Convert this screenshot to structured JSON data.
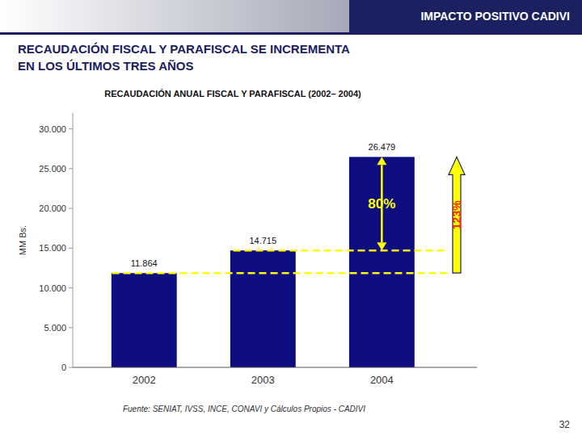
{
  "chart_data": {
    "type": "bar",
    "header": "IMPACTO POSITIVO CADIVI",
    "title_lines": [
      "RECAUDACIÓN FISCAL Y PARAFISCAL SE INCREMENTA",
      "EN LOS ÚLTIMOS TRES AÑOS"
    ],
    "subtitle": "RECAUDACIÓN ANUAL FISCAL Y PARAFISCAL  (2002– 2004)",
    "categories": [
      "2002",
      "2003",
      "2004"
    ],
    "values": [
      11864,
      14715,
      26479
    ],
    "value_labels": [
      "11.864",
      "14.715",
      "26.479"
    ],
    "color": "#0d0d80",
    "ylabel": "MM Bs.",
    "ylim": [
      0,
      32000
    ],
    "yticks": [
      0,
      {
        "value": 5000,
        "label": "5.000"
      },
      {
        "value": 10000,
        "label": "10.000"
      },
      {
        "value": 15000,
        "label": "15.000"
      },
      {
        "value": 20000,
        "label": "20.000"
      },
      {
        "value": 25000,
        "label": "25.000"
      },
      {
        "value": 30000,
        "label": "30.000"
      }
    ],
    "grid": false,
    "annotations": [
      {
        "type": "line",
        "y": 11864,
        "color": "#ffff00"
      },
      {
        "type": "line",
        "y": 14715,
        "color": "#ffff00"
      },
      {
        "type": "arrow",
        "from": 14715,
        "to": 26479,
        "label": "80%",
        "color": "#ffff00"
      },
      {
        "type": "arrow",
        "from": 11864,
        "to": 26479,
        "label": "123%",
        "color": "#ff2200"
      }
    ],
    "footnote": "Fuente: SENIAT, IVSS, INCE, CONAVI y Cálculos Propios - CADIVI",
    "page_number": "32"
  }
}
